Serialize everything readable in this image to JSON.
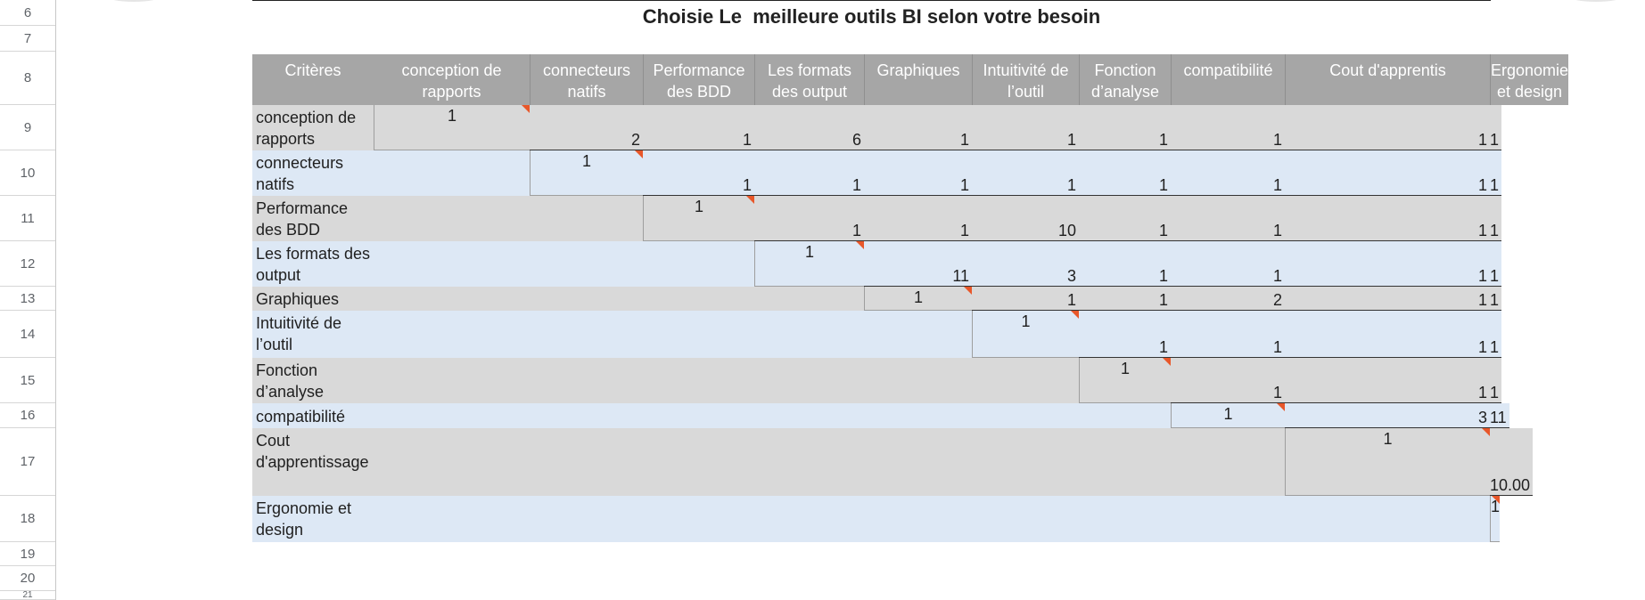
{
  "sheet": {
    "title": "Choisie Le  meilleure outils BI selon votre besoin",
    "row_numbers": [
      "6",
      "7",
      "8",
      "9",
      "10",
      "11",
      "12",
      "13",
      "14",
      "15",
      "16",
      "17",
      "18",
      "19",
      "20",
      "21"
    ]
  },
  "matrix": {
    "corner_label": "Critères",
    "columns": [
      "conception de rapports",
      "connecteurs natifs",
      "Performance des BDD",
      "Les formats des output",
      "Graphiques",
      "Intuitivité de l’outil",
      "Fonction d’analyse",
      "compatibilité",
      "Cout d'apprentis",
      "Ergonomie et design"
    ],
    "rows": [
      {
        "label": "conception de rapports",
        "values": [
          "1",
          "2",
          "1",
          "6",
          "1",
          "1",
          "1",
          "1",
          "1",
          "1"
        ]
      },
      {
        "label": "connecteurs natifs",
        "values": [
          "1",
          "1",
          "1",
          "1",
          "1",
          "1",
          "1",
          "1",
          "1"
        ]
      },
      {
        "label": "Performance des BDD",
        "values": [
          "1",
          "1",
          "1",
          "10",
          "1",
          "1",
          "1",
          "1"
        ]
      },
      {
        "label": "Les formats des output",
        "values": [
          "1",
          "11",
          "3",
          "1",
          "1",
          "1",
          "1"
        ]
      },
      {
        "label": "Graphiques",
        "values": [
          "1",
          "1",
          "1",
          "2",
          "1",
          "1"
        ]
      },
      {
        "label": "Intuitivité de l’outil",
        "values": [
          "1",
          "1",
          "1",
          "1",
          "1"
        ]
      },
      {
        "label": "Fonction d’analyse",
        "values": [
          "1",
          "1",
          "1",
          "1"
        ]
      },
      {
        "label": "compatibilité",
        "values": [
          "1",
          "3",
          "11"
        ]
      },
      {
        "label": "Cout d'apprentissage",
        "values": [
          "1",
          "10.00"
        ]
      },
      {
        "label": "Ergonomie et design",
        "values": [
          "1"
        ]
      }
    ]
  },
  "colors": {
    "header_bg": "#a6a6a6",
    "row_gray": "#d9d9d9",
    "row_blue": "#dde8f5",
    "comment_marker": "#e8572a"
  }
}
